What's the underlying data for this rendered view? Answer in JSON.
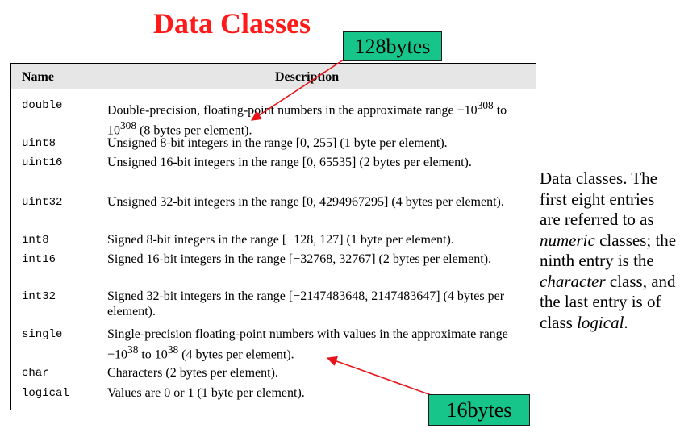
{
  "title": "Data Classes",
  "table": {
    "headers": {
      "name": "Name",
      "description": "Description"
    },
    "rows": [
      {
        "name": "double",
        "desc_html": "Double-precision, floating-point numbers in the approximate range &minus;10<sup>308</sup> to 10<sup>308</sup> (8 bytes per element)."
      },
      {
        "name": "uint8",
        "desc_html": "Unsigned 8-bit integers in the range [0, 255] (1 byte per element)."
      },
      {
        "name": "uint16",
        "desc_html": "Unsigned 16-bit integers in the range [0, 65535] (2 bytes per element)."
      },
      {
        "name": "uint32",
        "desc_html": "Unsigned 32-bit integers in the range [0, 4294967295] (4 bytes per element)."
      },
      {
        "name": "int8",
        "desc_html": "Signed 8-bit integers in the range [&minus;128, 127] (1 byte per element)."
      },
      {
        "name": "int16",
        "desc_html": "Signed 16-bit integers in the range [&minus;32768, 32767] (2 bytes per element)."
      },
      {
        "name": "int32",
        "desc_html": "Signed 32-bit integers in the range [&minus;2147483648, 2147483647] (4 bytes per element)."
      },
      {
        "name": "single",
        "desc_html": "Single-precision floating-point numbers with values in the approximate range &minus;10<sup>38</sup> to 10<sup>38</sup> (4 bytes per element)."
      },
      {
        "name": "char",
        "desc_html": "Characters (2 bytes per element)."
      },
      {
        "name": "logical",
        "desc_html": "Values are 0 or 1 (1 byte per element)."
      }
    ]
  },
  "side_note_html": "Data classes. The first eight entries are referred to as <i>numeric</i> classes; the ninth entry is the <i>character</i> class, and the last entry is of class <i>logical</i>.",
  "callouts": {
    "top": "128bytes",
    "bottom": "16bytes"
  },
  "colors": {
    "title": "#ff1a1a",
    "callout_fill": "#17c48a",
    "arrow": "#e8141c",
    "header_bg": "#e6e6e6"
  }
}
